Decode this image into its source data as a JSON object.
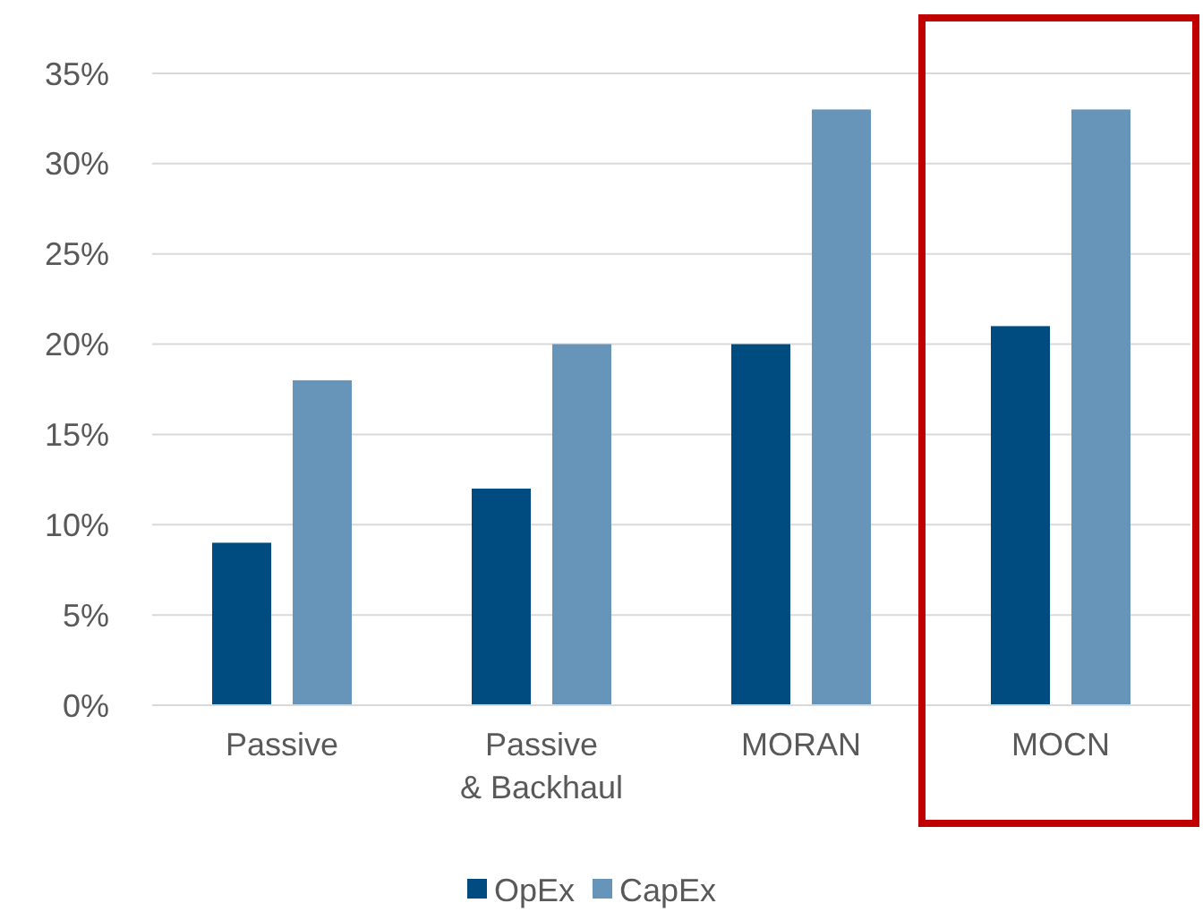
{
  "chart_data": {
    "type": "bar",
    "categories": [
      "Passive",
      "Passive\n& Backhaul",
      "MORAN",
      "MOCN"
    ],
    "series": [
      {
        "name": "OpEx",
        "color": "#004b7f",
        "values": [
          9,
          12,
          20,
          21
        ]
      },
      {
        "name": "CapEx",
        "color": "#6795b9",
        "values": [
          18,
          20,
          33,
          33
        ]
      }
    ],
    "ylim": [
      0,
      35
    ],
    "yticks": [
      {
        "value": 0,
        "label": "0%"
      },
      {
        "value": 5,
        "label": "5%"
      },
      {
        "value": 10,
        "label": "10%"
      },
      {
        "value": 15,
        "label": "15%"
      },
      {
        "value": 20,
        "label": "20%"
      },
      {
        "value": 25,
        "label": "25%"
      },
      {
        "value": 30,
        "label": "30%"
      },
      {
        "value": 35,
        "label": "35%"
      }
    ],
    "grid": "y",
    "legend": "bottom"
  }
}
